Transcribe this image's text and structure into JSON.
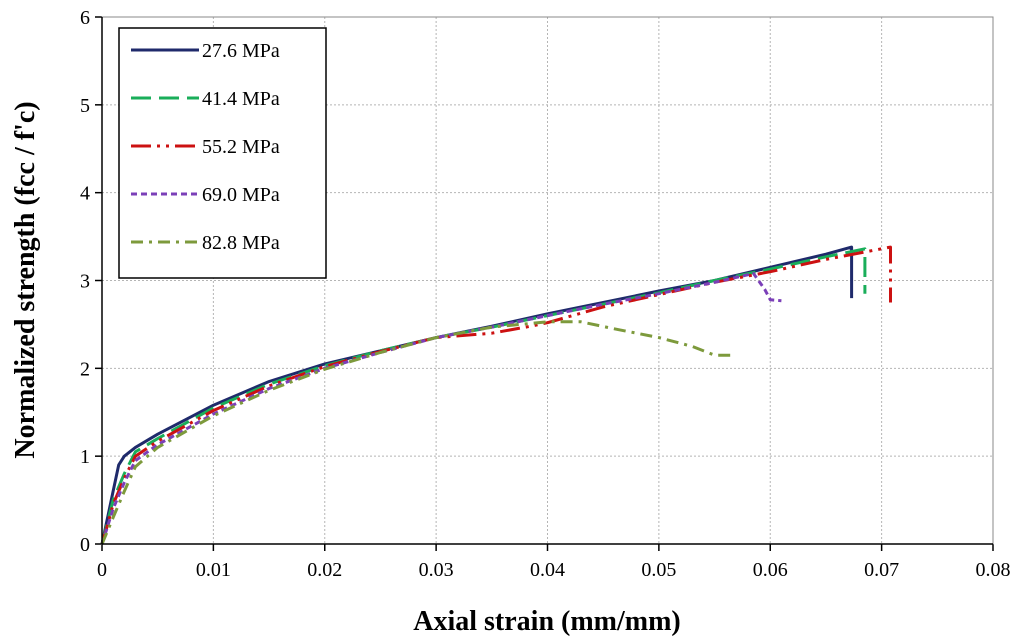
{
  "chart_data": {
    "type": "line",
    "title": "",
    "xlabel": "Axial strain (mm/mm)",
    "ylabel": "Normalized strength (fcc / f'c)",
    "xlim": [
      0,
      0.08
    ],
    "ylim": [
      0,
      6
    ],
    "x_ticks": [
      "0",
      "0.01",
      "0.02",
      "0.03",
      "0.04",
      "0.05",
      "0.06",
      "0.07",
      "0.08"
    ],
    "y_ticks": [
      "0",
      "1",
      "2",
      "3",
      "4",
      "5",
      "6"
    ],
    "grid": true,
    "legend_position": "top-left",
    "series": [
      {
        "name": "27.6 MPa",
        "color": "#1f2a6b",
        "dash": "solid",
        "points": [
          [
            0,
            0
          ],
          [
            0.0005,
            0.3
          ],
          [
            0.001,
            0.6
          ],
          [
            0.0015,
            0.9
          ],
          [
            0.002,
            1.0
          ],
          [
            0.003,
            1.1
          ],
          [
            0.005,
            1.25
          ],
          [
            0.01,
            1.58
          ],
          [
            0.015,
            1.85
          ],
          [
            0.02,
            2.05
          ],
          [
            0.025,
            2.2
          ],
          [
            0.03,
            2.35
          ],
          [
            0.035,
            2.48
          ],
          [
            0.04,
            2.62
          ],
          [
            0.045,
            2.75
          ],
          [
            0.05,
            2.88
          ],
          [
            0.055,
            3.0
          ],
          [
            0.06,
            3.15
          ],
          [
            0.065,
            3.3
          ],
          [
            0.0673,
            3.38
          ],
          [
            0.0673,
            2.8
          ]
        ]
      },
      {
        "name": "41.4 MPa",
        "color": "#1aae5a",
        "dash": "long-dash",
        "points": [
          [
            0,
            0
          ],
          [
            0.0005,
            0.25
          ],
          [
            0.001,
            0.5
          ],
          [
            0.002,
            0.8
          ],
          [
            0.003,
            1.05
          ],
          [
            0.005,
            1.2
          ],
          [
            0.01,
            1.55
          ],
          [
            0.015,
            1.82
          ],
          [
            0.02,
            2.03
          ],
          [
            0.025,
            2.2
          ],
          [
            0.03,
            2.35
          ],
          [
            0.035,
            2.47
          ],
          [
            0.04,
            2.6
          ],
          [
            0.045,
            2.73
          ],
          [
            0.05,
            2.86
          ],
          [
            0.055,
            3.0
          ],
          [
            0.06,
            3.13
          ],
          [
            0.065,
            3.27
          ],
          [
            0.0685,
            3.36
          ],
          [
            0.0685,
            2.85
          ]
        ]
      },
      {
        "name": "55.2 MPa",
        "color": "#cc1111",
        "dash": "dash-dot-dot",
        "points": [
          [
            0,
            0
          ],
          [
            0.0005,
            0.22
          ],
          [
            0.001,
            0.45
          ],
          [
            0.002,
            0.75
          ],
          [
            0.003,
            1.0
          ],
          [
            0.005,
            1.17
          ],
          [
            0.01,
            1.52
          ],
          [
            0.015,
            1.8
          ],
          [
            0.02,
            2.02
          ],
          [
            0.025,
            2.19
          ],
          [
            0.03,
            2.35
          ],
          [
            0.035,
            2.4
          ],
          [
            0.0385,
            2.48
          ],
          [
            0.04,
            2.52
          ],
          [
            0.045,
            2.7
          ],
          [
            0.05,
            2.84
          ],
          [
            0.055,
            2.98
          ],
          [
            0.06,
            3.1
          ],
          [
            0.065,
            3.24
          ],
          [
            0.0708,
            3.38
          ],
          [
            0.0708,
            2.75
          ]
        ]
      },
      {
        "name": "69.0 MPa",
        "color": "#7b3fb8",
        "dash": "short-dash",
        "points": [
          [
            0,
            0
          ],
          [
            0.0005,
            0.2
          ],
          [
            0.001,
            0.4
          ],
          [
            0.002,
            0.7
          ],
          [
            0.003,
            0.95
          ],
          [
            0.005,
            1.13
          ],
          [
            0.01,
            1.48
          ],
          [
            0.015,
            1.77
          ],
          [
            0.02,
            2.0
          ],
          [
            0.025,
            2.18
          ],
          [
            0.03,
            2.35
          ],
          [
            0.035,
            2.47
          ],
          [
            0.04,
            2.6
          ],
          [
            0.045,
            2.73
          ],
          [
            0.05,
            2.85
          ],
          [
            0.055,
            2.98
          ],
          [
            0.0585,
            3.08
          ],
          [
            0.0595,
            2.9
          ],
          [
            0.06,
            2.78
          ],
          [
            0.061,
            2.77
          ]
        ]
      },
      {
        "name": "82.8 MPa",
        "color": "#7d9a3c",
        "dash": "dash-dot",
        "points": [
          [
            0,
            0
          ],
          [
            0.0005,
            0.15
          ],
          [
            0.001,
            0.3
          ],
          [
            0.002,
            0.6
          ],
          [
            0.003,
            0.88
          ],
          [
            0.005,
            1.1
          ],
          [
            0.01,
            1.46
          ],
          [
            0.015,
            1.75
          ],
          [
            0.02,
            1.99
          ],
          [
            0.025,
            2.18
          ],
          [
            0.03,
            2.35
          ],
          [
            0.035,
            2.47
          ],
          [
            0.04,
            2.53
          ],
          [
            0.043,
            2.53
          ],
          [
            0.046,
            2.45
          ],
          [
            0.05,
            2.35
          ],
          [
            0.053,
            2.25
          ],
          [
            0.055,
            2.15
          ],
          [
            0.0565,
            2.15
          ]
        ]
      }
    ]
  }
}
